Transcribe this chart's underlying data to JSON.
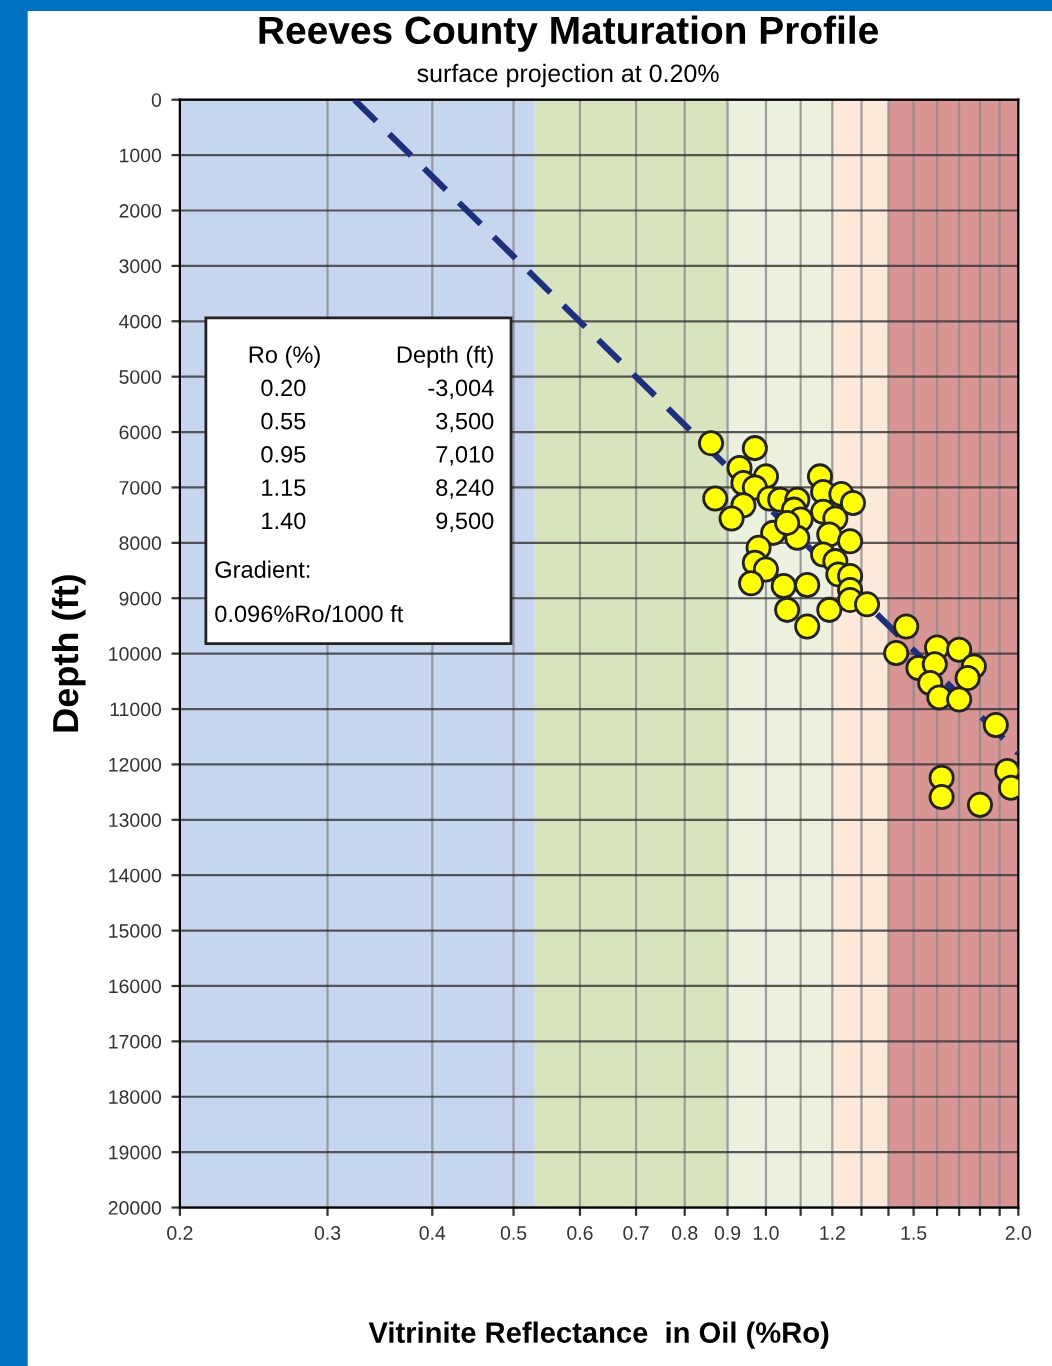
{
  "chart_data": {
    "type": "scatter",
    "title": "Reeves County Maturation Profile",
    "subtitle": "surface projection at 0.20%",
    "xlabel": "Vitrinite Reflectance  in Oil (%Ro)",
    "ylabel": "Depth (ft)",
    "log": "x",
    "grid": true,
    "xlim": [
      0.2,
      2.0
    ],
    "ylim": [
      20000,
      0
    ],
    "xticks": [
      0.2,
      0.3,
      0.4,
      0.5,
      0.6,
      0.7,
      0.8,
      0.9,
      {
        "value": 1.0,
        "label": "1.0"
      },
      {
        "value": 1.1,
        "label": null
      },
      1.2,
      {
        "value": 1.3,
        "label": null
      },
      {
        "value": 1.4,
        "label": null
      },
      1.5,
      {
        "value": 1.6,
        "label": null
      },
      {
        "value": 1.7,
        "label": null
      },
      {
        "value": 1.8,
        "label": null
      },
      {
        "value": 1.9,
        "label": null
      },
      {
        "value": 2.0,
        "label": "2.0"
      }
    ],
    "yticks": [
      0,
      1000,
      2000,
      3000,
      4000,
      5000,
      6000,
      7000,
      8000,
      9000,
      10000,
      11000,
      12000,
      13000,
      14000,
      15000,
      16000,
      17000,
      18000,
      19000,
      20000
    ],
    "bands": [
      {
        "axis": "x",
        "from": 0.2,
        "to": 0.53,
        "color": "#c6d6ef"
      },
      {
        "axis": "x",
        "from": 0.53,
        "to": 0.9,
        "color": "#d7e4bd"
      },
      {
        "axis": "x",
        "from": 0.9,
        "to": 1.2,
        "color": "#ebf1de"
      },
      {
        "axis": "x",
        "from": 1.2,
        "to": 1.4,
        "color": "#fde9d9"
      },
      {
        "axis": "x",
        "from": 1.4,
        "to": 2.0,
        "color": "#d99594"
      }
    ],
    "annotations": [
      "Ro (%)",
      "Depth (ft)",
      "0.20",
      "-3,004",
      "0.55",
      "3,500",
      "0.95",
      "7,010",
      "1.15",
      "8,240",
      "1.40",
      "9,500",
      "Gradient:",
      "0.096%Ro/1000 ft"
    ],
    "series": [
      {
        "type": "line",
        "x": [
          0.323,
          2.0
        ],
        "values": [
          0,
          11800
        ],
        "color": "#1f2f80",
        "line_style": "dashed",
        "marker": "none"
      },
      {
        "color": "#ffff00",
        "marker": "circle",
        "x": [
          0.86,
          0.97,
          0.93,
          1.0,
          0.94,
          0.97,
          0.87,
          0.94,
          1.01,
          1.04,
          1.09,
          1.08,
          1.1,
          0.91,
          1.02,
          1.09,
          1.06,
          1.16,
          1.17,
          1.23,
          1.27,
          1.17,
          1.21,
          1.19,
          1.26,
          1.17,
          1.21,
          0.98,
          0.97,
          1.0,
          0.96,
          1.05,
          1.12,
          1.06,
          1.12,
          1.19,
          1.22,
          1.26,
          1.26,
          1.26,
          1.32,
          1.47,
          1.43,
          1.6,
          1.7,
          1.52,
          1.59,
          1.77,
          1.74,
          1.57,
          1.61,
          1.7,
          1.88,
          1.62,
          1.62,
          1.8,
          1.94,
          1.96
        ],
        "values": [
          6200,
          6290,
          6650,
          6800,
          6920,
          7000,
          7200,
          7320,
          7200,
          7220,
          7220,
          7400,
          7580,
          7560,
          7820,
          7910,
          7640,
          6800,
          7080,
          7120,
          7280,
          7440,
          7560,
          7850,
          7970,
          8210,
          8330,
          8090,
          8360,
          8480,
          8730,
          8780,
          8760,
          9210,
          9510,
          9210,
          8570,
          8600,
          8850,
          9030,
          9110,
          9510,
          9990,
          9890,
          9930,
          10260,
          10190,
          10230,
          10440,
          10530,
          10790,
          10830,
          11290,
          12240,
          12590,
          12730,
          12120,
          12420
        ]
      }
    ]
  }
}
